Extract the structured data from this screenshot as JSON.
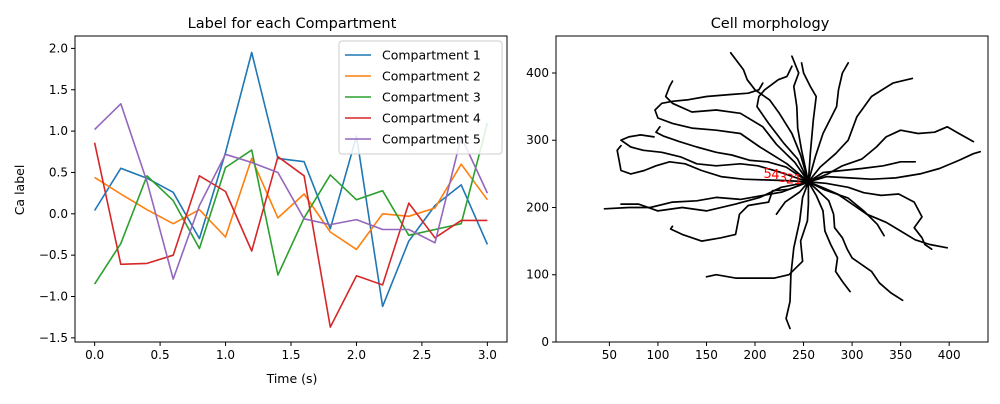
{
  "chart_data": [
    {
      "type": "line",
      "title": "Label for each Compartment",
      "xlabel": "Time (s)",
      "ylabel": "Ca label",
      "xlim": [
        -0.15,
        3.15
      ],
      "ylim": [
        -1.55,
        2.15
      ],
      "xticks": [
        0.0,
        0.5,
        1.0,
        1.5,
        2.0,
        2.5,
        3.0
      ],
      "xtick_labels": [
        "0.0",
        "0.5",
        "1.0",
        "1.5",
        "2.0",
        "2.5",
        "3.0"
      ],
      "yticks": [
        -1.5,
        -1.0,
        -0.5,
        0.0,
        0.5,
        1.0,
        1.5,
        2.0
      ],
      "ytick_labels": [
        "−1.5",
        "−1.0",
        "−0.5",
        "0.0",
        "0.5",
        "1.0",
        "1.5",
        "2.0"
      ],
      "grid": false,
      "legend_position": "top-right",
      "x": [
        0.0,
        0.2,
        0.4,
        0.6,
        0.8,
        1.0,
        1.2,
        1.4,
        1.6,
        1.8,
        2.0,
        2.2,
        2.4,
        2.6,
        2.8,
        3.0
      ],
      "series": [
        {
          "name": "Compartment 1",
          "color": "#1f77b4",
          "values": [
            0.04,
            0.55,
            0.43,
            0.26,
            -0.3,
            0.74,
            1.95,
            0.67,
            0.63,
            -0.18,
            0.94,
            -1.12,
            -0.33,
            0.1,
            0.35,
            -0.37
          ]
        },
        {
          "name": "Compartment 2",
          "color": "#ff7f0e",
          "values": [
            0.44,
            0.24,
            0.05,
            -0.12,
            0.05,
            -0.28,
            0.67,
            -0.05,
            0.24,
            -0.22,
            -0.43,
            0.0,
            -0.03,
            0.07,
            0.6,
            0.17
          ]
        },
        {
          "name": "Compartment 3",
          "color": "#2ca02c",
          "values": [
            -0.85,
            -0.36,
            0.46,
            0.16,
            -0.42,
            0.56,
            0.77,
            -0.74,
            -0.05,
            0.47,
            0.17,
            0.28,
            -0.26,
            -0.19,
            -0.12,
            1.1
          ]
        },
        {
          "name": "Compartment 4",
          "color": "#d62728",
          "values": [
            0.86,
            -0.61,
            -0.6,
            -0.5,
            0.46,
            0.27,
            -0.45,
            0.69,
            0.46,
            -1.37,
            -0.75,
            -0.86,
            0.13,
            -0.29,
            -0.08,
            -0.08
          ]
        },
        {
          "name": "Compartment 5",
          "color": "#9467bd",
          "values": [
            1.02,
            1.33,
            0.39,
            -0.79,
            0.1,
            0.72,
            0.62,
            0.5,
            -0.06,
            -0.13,
            -0.07,
            -0.19,
            -0.19,
            -0.35,
            0.93,
            0.25
          ]
        }
      ]
    },
    {
      "type": "scatter",
      "title": "Cell morphology",
      "xlim": [
        -5,
        440
      ],
      "ylim": [
        0,
        455
      ],
      "xticks": [
        50,
        100,
        150,
        200,
        250,
        300,
        350,
        400
      ],
      "xtick_labels": [
        "50",
        "100",
        "150",
        "200",
        "250",
        "300",
        "350",
        "400"
      ],
      "yticks": [
        0,
        100,
        200,
        300,
        400
      ],
      "ytick_labels": [
        "0",
        "100",
        "200",
        "300",
        "400"
      ],
      "grid": false,
      "soma": [
        255,
        238
      ],
      "branch_color": "#000000",
      "branches": [
        [
          [
            255,
            238
          ],
          [
            249,
            215
          ],
          [
            246,
            180
          ],
          [
            240,
            140
          ],
          [
            237,
            100
          ],
          [
            236,
            60
          ],
          [
            232,
            35
          ],
          [
            236,
            20
          ]
        ],
        [
          [
            255,
            238
          ],
          [
            255,
            205
          ],
          [
            254,
            180
          ],
          [
            247,
            150
          ],
          [
            249,
            120
          ],
          [
            235,
            100
          ],
          [
            220,
            95
          ],
          [
            180,
            95
          ],
          [
            160,
            100
          ],
          [
            150,
            97
          ]
        ],
        [
          [
            255,
            238
          ],
          [
            235,
            227
          ],
          [
            218,
            225
          ],
          [
            214,
            208
          ],
          [
            193,
            203
          ],
          [
            184,
            190
          ],
          [
            180,
            160
          ],
          [
            165,
            155
          ],
          [
            145,
            150
          ],
          [
            125,
            160
          ],
          [
            113,
            168
          ],
          [
            115,
            172
          ]
        ],
        [
          [
            255,
            238
          ],
          [
            227,
            230
          ],
          [
            205,
            215
          ],
          [
            180,
            205
          ],
          [
            150,
            195
          ],
          [
            125,
            200
          ],
          [
            100,
            195
          ],
          [
            80,
            205
          ],
          [
            62,
            205
          ]
        ],
        [
          [
            255,
            238
          ],
          [
            228,
            223
          ],
          [
            208,
            218
          ],
          [
            185,
            212
          ],
          [
            160,
            215
          ],
          [
            140,
            210
          ],
          [
            115,
            208
          ],
          [
            92,
            200
          ],
          [
            70,
            200
          ],
          [
            45,
            198
          ]
        ],
        [
          [
            255,
            238
          ],
          [
            232,
            240
          ],
          [
            210,
            241
          ],
          [
            188,
            242
          ],
          [
            165,
            246
          ],
          [
            145,
            255
          ],
          [
            128,
            265
          ],
          [
            112,
            268
          ],
          [
            98,
            262
          ],
          [
            86,
            255
          ],
          [
            72,
            250
          ],
          [
            62,
            255
          ],
          [
            60,
            270
          ],
          [
            58,
            285
          ],
          [
            62,
            292
          ]
        ],
        [
          [
            255,
            238
          ],
          [
            225,
            253
          ],
          [
            203,
            262
          ],
          [
            185,
            265
          ],
          [
            160,
            262
          ],
          [
            140,
            265
          ],
          [
            124,
            275
          ],
          [
            104,
            282
          ],
          [
            85,
            285
          ],
          [
            72,
            290
          ],
          [
            62,
            300
          ],
          [
            70,
            305
          ],
          [
            82,
            308
          ],
          [
            96,
            305
          ]
        ],
        [
          [
            255,
            238
          ],
          [
            232,
            260
          ],
          [
            213,
            268
          ],
          [
            195,
            270
          ],
          [
            176,
            278
          ],
          [
            160,
            282
          ],
          [
            140,
            290
          ],
          [
            122,
            298
          ],
          [
            106,
            306
          ],
          [
            98,
            312
          ],
          [
            102,
            320
          ]
        ],
        [
          [
            255,
            238
          ],
          [
            233,
            265
          ],
          [
            205,
            290
          ],
          [
            185,
            310
          ],
          [
            160,
            315
          ],
          [
            135,
            318
          ],
          [
            115,
            325
          ],
          [
            100,
            333
          ],
          [
            97,
            345
          ],
          [
            104,
            355
          ],
          [
            116,
            358
          ],
          [
            130,
            360
          ],
          [
            150,
            365
          ],
          [
            175,
            368
          ],
          [
            193,
            370
          ],
          [
            204,
            375
          ],
          [
            208,
            385
          ]
        ],
        [
          [
            255,
            238
          ],
          [
            241,
            267
          ],
          [
            222,
            294
          ],
          [
            208,
            320
          ],
          [
            185,
            340
          ],
          [
            160,
            345
          ],
          [
            135,
            342
          ],
          [
            115,
            355
          ],
          [
            108,
            365
          ],
          [
            112,
            380
          ],
          [
            115,
            388
          ]
        ],
        [
          [
            255,
            238
          ],
          [
            244,
            272
          ],
          [
            230,
            295
          ],
          [
            214,
            325
          ],
          [
            202,
            350
          ],
          [
            204,
            365
          ],
          [
            210,
            375
          ],
          [
            224,
            390
          ],
          [
            233,
            395
          ],
          [
            238,
            410
          ]
        ],
        [
          [
            255,
            238
          ],
          [
            247,
            278
          ],
          [
            238,
            310
          ],
          [
            225,
            340
          ],
          [
            215,
            360
          ],
          [
            200,
            375
          ],
          [
            192,
            390
          ],
          [
            188,
            405
          ],
          [
            175,
            430
          ]
        ],
        [
          [
            255,
            238
          ],
          [
            248,
            285
          ],
          [
            244,
            318
          ],
          [
            243,
            350
          ],
          [
            240,
            380
          ],
          [
            245,
            400
          ],
          [
            238,
            425
          ]
        ],
        [
          [
            255,
            238
          ],
          [
            257,
            280
          ],
          [
            260,
            330
          ],
          [
            263,
            365
          ],
          [
            257,
            380
          ],
          [
            250,
            400
          ],
          [
            248,
            415
          ]
        ],
        [
          [
            255,
            238
          ],
          [
            262,
            275
          ],
          [
            270,
            310
          ],
          [
            284,
            350
          ],
          [
            286,
            375
          ],
          [
            290,
            400
          ],
          [
            296,
            415
          ]
        ],
        [
          [
            255,
            238
          ],
          [
            267,
            260
          ],
          [
            283,
            280
          ],
          [
            296,
            300
          ],
          [
            305,
            335
          ],
          [
            320,
            365
          ],
          [
            342,
            385
          ],
          [
            362,
            392
          ]
        ],
        [
          [
            255,
            238
          ],
          [
            275,
            250
          ],
          [
            290,
            262
          ],
          [
            310,
            272
          ],
          [
            325,
            290
          ],
          [
            335,
            305
          ],
          [
            350,
            315
          ],
          [
            368,
            310
          ],
          [
            385,
            312
          ],
          [
            398,
            320
          ],
          [
            410,
            310
          ],
          [
            425,
            298
          ]
        ],
        [
          [
            255,
            238
          ],
          [
            270,
            252
          ],
          [
            290,
            255
          ],
          [
            310,
            258
          ],
          [
            332,
            262
          ],
          [
            350,
            268
          ],
          [
            365,
            268
          ]
        ],
        [
          [
            255,
            238
          ],
          [
            274,
            246
          ],
          [
            297,
            244
          ],
          [
            320,
            242
          ],
          [
            345,
            244
          ],
          [
            370,
            250
          ],
          [
            390,
            258
          ],
          [
            410,
            270
          ],
          [
            425,
            280
          ],
          [
            432,
            283
          ]
        ],
        [
          [
            255,
            238
          ],
          [
            273,
            236
          ],
          [
            296,
            230
          ],
          [
            312,
            222
          ],
          [
            330,
            218
          ],
          [
            348,
            220
          ],
          [
            364,
            208
          ],
          [
            372,
            186
          ],
          [
            364,
            170
          ],
          [
            372,
            155
          ],
          [
            375,
            145
          ],
          [
            382,
            138
          ]
        ],
        [
          [
            255,
            238
          ],
          [
            269,
            230
          ],
          [
            285,
            220
          ],
          [
            300,
            205
          ],
          [
            315,
            190
          ],
          [
            335,
            178
          ],
          [
            350,
            165
          ],
          [
            365,
            152
          ],
          [
            380,
            145
          ],
          [
            398,
            140
          ]
        ],
        [
          [
            255,
            238
          ],
          [
            265,
            225
          ],
          [
            276,
            210
          ],
          [
            281,
            190
          ],
          [
            282,
            170
          ],
          [
            290,
            155
          ],
          [
            295,
            138
          ],
          [
            300,
            125
          ],
          [
            310,
            115
          ],
          [
            320,
            105
          ],
          [
            328,
            88
          ],
          [
            340,
            73
          ],
          [
            352,
            62
          ]
        ],
        [
          [
            255,
            238
          ],
          [
            263,
            218
          ],
          [
            270,
            195
          ],
          [
            272,
            165
          ],
          [
            278,
            145
          ],
          [
            285,
            125
          ],
          [
            283,
            105
          ],
          [
            290,
            90
          ],
          [
            298,
            75
          ]
        ],
        [
          [
            255,
            238
          ],
          [
            246,
            223
          ],
          [
            231,
            208
          ],
          [
            226,
            198
          ],
          [
            222,
            190
          ]
        ],
        [
          [
            255,
            238
          ],
          [
            272,
            226
          ],
          [
            296,
            214
          ],
          [
            312,
            195
          ],
          [
            326,
            175
          ],
          [
            333,
            158
          ]
        ]
      ],
      "labels": [
        {
          "text": "1",
          "x": 244,
          "y": 235
        },
        {
          "text": "2",
          "x": 236,
          "y": 236
        },
        {
          "text": "3",
          "x": 229,
          "y": 238
        },
        {
          "text": "4",
          "x": 221,
          "y": 242
        },
        {
          "text": "5",
          "x": 213,
          "y": 244
        }
      ],
      "label_color": "#ff0000"
    }
  ]
}
